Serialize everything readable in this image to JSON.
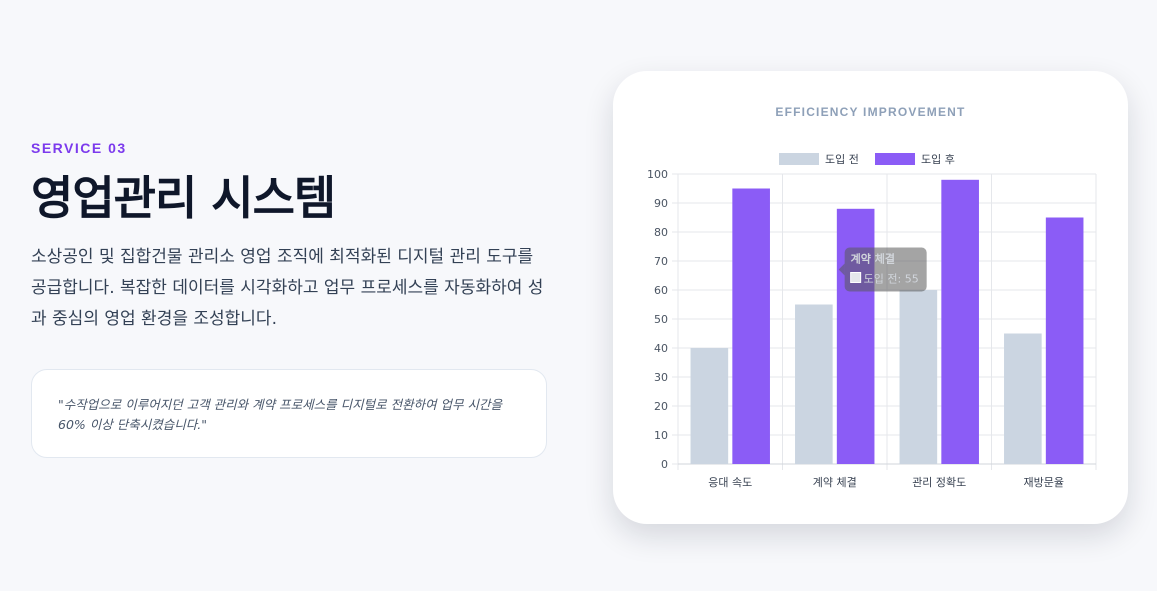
{
  "hero": {
    "eyebrow": "SERVICE 03",
    "title": "영업관리 시스템",
    "description": "소상공인 및 집합건물 관리소 영업 조직에 최적화된 디지털 관리 도구를 공급합니다. 복잡한 데이터를 시각화하고 업무 프로세스를 자동화하여 성과 중심의 영업 환경을 조성합니다.",
    "quote": "\"수작업으로 이루어지던 고객 관리와 계약 프로세스를 디지털로 전환하여 업무 시간을 60% 이상 단축시켰습니다.\""
  },
  "card": {
    "title": "EFFICIENCY IMPROVEMENT"
  },
  "colors": {
    "accent": "#7c3aed",
    "before": "#cbd5e1",
    "after": "#8b5cf6"
  },
  "chart_data": {
    "type": "bar",
    "categories": [
      "응대 속도",
      "계약 체결",
      "관리 정확도",
      "재방문율"
    ],
    "series": [
      {
        "name": "도입 전",
        "values": [
          40,
          55,
          60,
          45
        ],
        "color": "#cbd5e1"
      },
      {
        "name": "도입 후",
        "values": [
          95,
          88,
          98,
          85
        ],
        "color": "#8b5cf6"
      }
    ],
    "ylim": [
      0,
      100
    ],
    "yticks": [
      0,
      10,
      20,
      30,
      40,
      50,
      60,
      70,
      80,
      90,
      100
    ],
    "grid": true,
    "legend": "top-center",
    "tooltip": {
      "title": "계약 체결",
      "label": "도입 전: 55"
    }
  }
}
